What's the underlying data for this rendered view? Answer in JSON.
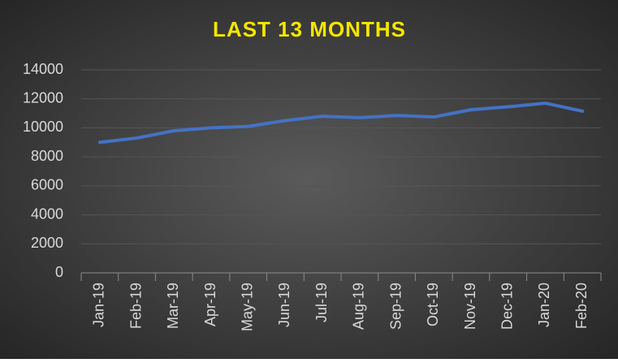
{
  "chart_data": {
    "type": "line",
    "title": "LAST 13 MONTHS",
    "categories": [
      "Jan-19",
      "Feb-19",
      "Mar-19",
      "Apr-19",
      "May-19",
      "Jun-19",
      "Jul-19",
      "Aug-19",
      "Sep-19",
      "Oct-19",
      "Nov-19",
      "Dec-19",
      "Jan-20",
      "Feb-20"
    ],
    "series": [
      {
        "name": "Last 13 months",
        "color": "#4472c4",
        "values": [
          9000,
          9300,
          9800,
          10000,
          10100,
          10500,
          10800,
          10700,
          10850,
          10750,
          11250,
          11450,
          11700,
          11150
        ]
      }
    ],
    "ylim": [
      0,
      14000
    ],
    "yticks": [
      0,
      2000,
      4000,
      6000,
      8000,
      10000,
      12000,
      14000
    ],
    "grid": true
  }
}
